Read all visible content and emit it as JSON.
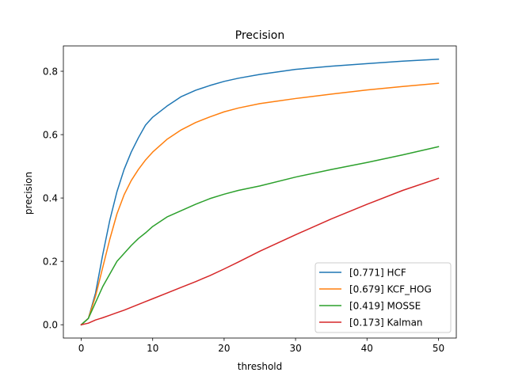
{
  "chart_data": {
    "type": "line",
    "title": "Precision",
    "xlabel": "threshold",
    "ylabel": "precision",
    "xlim": [
      -2.5,
      52.5
    ],
    "ylim": [
      -0.042,
      0.88
    ],
    "xticks": [
      0,
      10,
      20,
      30,
      40,
      50
    ],
    "yticks": [
      0.0,
      0.2,
      0.4,
      0.6,
      0.8
    ],
    "legend_position": "lower-right",
    "grid": false,
    "series": [
      {
        "name": "[0.771] HCF",
        "color": "#1f77b4",
        "x": [
          0,
          1,
          2,
          3,
          4,
          5,
          6,
          7,
          8,
          9,
          10,
          12,
          14,
          16,
          18,
          20,
          22,
          25,
          30,
          35,
          40,
          45,
          50
        ],
        "y": [
          0.0,
          0.02,
          0.1,
          0.22,
          0.33,
          0.42,
          0.49,
          0.545,
          0.59,
          0.63,
          0.655,
          0.69,
          0.72,
          0.74,
          0.755,
          0.768,
          0.778,
          0.79,
          0.806,
          0.816,
          0.824,
          0.832,
          0.838
        ]
      },
      {
        "name": "[0.679] KCF_HOG",
        "color": "#ff7f0e",
        "x": [
          0,
          1,
          2,
          3,
          4,
          5,
          6,
          7,
          8,
          9,
          10,
          12,
          14,
          16,
          18,
          20,
          22,
          25,
          30,
          35,
          40,
          45,
          50
        ],
        "y": [
          0.0,
          0.02,
          0.09,
          0.18,
          0.27,
          0.35,
          0.41,
          0.455,
          0.49,
          0.52,
          0.545,
          0.585,
          0.615,
          0.638,
          0.656,
          0.672,
          0.684,
          0.698,
          0.714,
          0.728,
          0.741,
          0.752,
          0.762
        ]
      },
      {
        "name": "[0.419] MOSSE",
        "color": "#2ca02c",
        "x": [
          0,
          1,
          2,
          3,
          4,
          5,
          6,
          7,
          8,
          9,
          10,
          12,
          14,
          16,
          18,
          20,
          22,
          25,
          30,
          35,
          40,
          45,
          50
        ],
        "y": [
          0.0,
          0.02,
          0.07,
          0.12,
          0.16,
          0.2,
          0.225,
          0.25,
          0.272,
          0.29,
          0.31,
          0.34,
          0.36,
          0.38,
          0.398,
          0.412,
          0.424,
          0.438,
          0.466,
          0.49,
          0.512,
          0.536,
          0.562
        ]
      },
      {
        "name": "[0.173] Kalman",
        "color": "#d62728",
        "x": [
          0,
          1,
          2,
          3,
          4,
          5,
          6,
          7,
          8,
          9,
          10,
          12,
          14,
          16,
          18,
          20,
          22,
          25,
          30,
          35,
          40,
          45,
          50
        ],
        "y": [
          0.0,
          0.005,
          0.015,
          0.022,
          0.03,
          0.038,
          0.046,
          0.055,
          0.064,
          0.073,
          0.082,
          0.1,
          0.118,
          0.136,
          0.155,
          0.176,
          0.198,
          0.232,
          0.284,
          0.334,
          0.38,
          0.424,
          0.462
        ]
      }
    ]
  }
}
